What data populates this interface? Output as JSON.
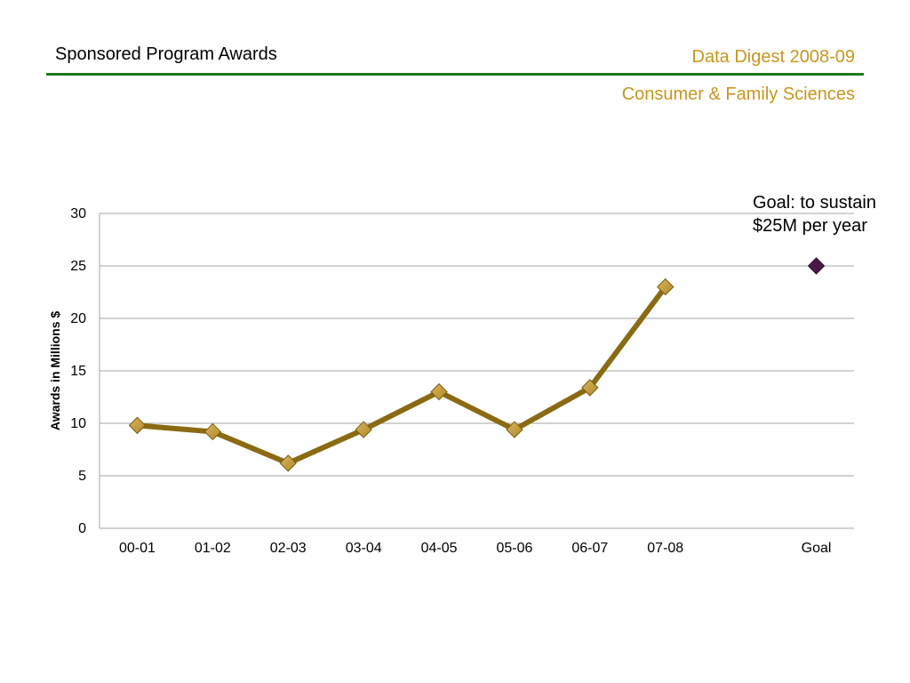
{
  "header": {
    "title": "Sponsored Program Awards",
    "digest": "Data Digest 2008-09",
    "department": "Consumer & Family Sciences"
  },
  "annotation": {
    "line1": "Goal: to sustain",
    "line2": "$25M per year"
  },
  "colors": {
    "rule": "#1f7a1f",
    "header_accent": "#c8961e",
    "series_line": "#8a6a12",
    "series_marker": "#b08a2a",
    "goal_marker": "#4a1848",
    "gridline": "#a6a6a6"
  },
  "chart_data": {
    "type": "line",
    "categories": [
      "00-01",
      "01-02",
      "02-03",
      "03-04",
      "04-05",
      "05-06",
      "06-07",
      "07-08",
      "",
      "Goal"
    ],
    "series": [
      {
        "values": [
          9.8,
          9.2,
          6.2,
          9.4,
          13.0,
          9.4,
          13.4,
          23.0,
          null,
          null
        ]
      },
      {
        "values": [
          null,
          null,
          null,
          null,
          null,
          null,
          null,
          null,
          null,
          25
        ]
      }
    ],
    "title": "",
    "xlabel": "",
    "ylabel": "Awards in Millions $",
    "ylim": [
      0,
      30
    ],
    "yticks": [
      0,
      5,
      10,
      15,
      20,
      25,
      30
    ],
    "grid": true,
    "legend": "none"
  }
}
